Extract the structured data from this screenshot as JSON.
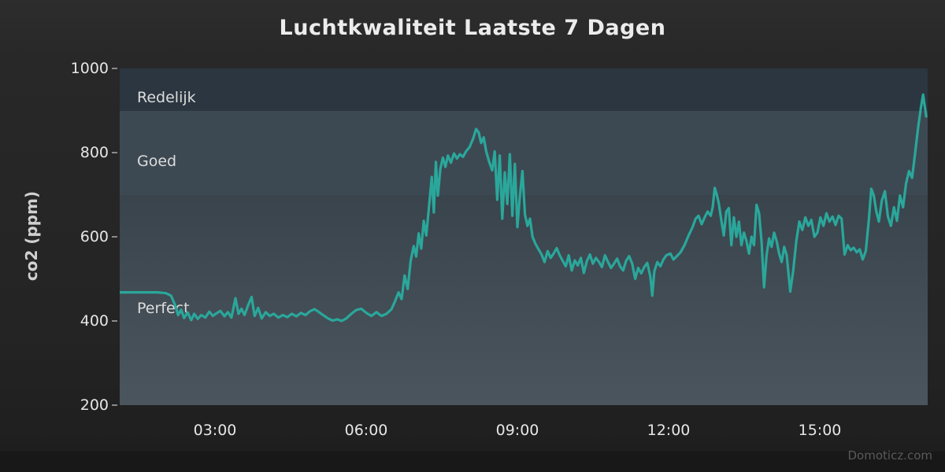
{
  "watermark": "Domoticz.com",
  "chart_data": {
    "type": "line",
    "title": "Luchtkwaliteit Laatste 7 Dagen",
    "xlabel": "",
    "ylabel": "co2 (ppm)",
    "x_unit": "time_of_day_hours",
    "xlim": [
      1.1,
      17.15
    ],
    "ylim": [
      200,
      1000
    ],
    "xtick_values": [
      3,
      6,
      9,
      12,
      15
    ],
    "xtick_labels": [
      "03:00",
      "06:00",
      "09:00",
      "12:00",
      "15:00"
    ],
    "ytick_values": [
      1000,
      800,
      600,
      400,
      200
    ],
    "ytick_labels": [
      "1000",
      "800",
      "600",
      "400",
      "200"
    ],
    "grid": false,
    "legend": false,
    "line_color": "#2aa79b",
    "plot_bg_top": "#2f3a42",
    "plot_bg_bottom": "#4b555d",
    "bands": [
      {
        "label": "Redelijk",
        "from": 900,
        "to": 1000,
        "color": "#2b3640",
        "label_at": 930
      },
      {
        "label": "Goed",
        "from": 700,
        "to": 900,
        "color": "#3d4952",
        "label_at": 780
      },
      {
        "label": "Perfect",
        "from": 200,
        "to": 700,
        "color": "transparent",
        "label_at": 430
      }
    ],
    "series": [
      {
        "name": "co2",
        "points": [
          [
            1.1,
            468
          ],
          [
            1.35,
            468
          ],
          [
            1.6,
            468
          ],
          [
            1.85,
            468
          ],
          [
            2.02,
            466
          ],
          [
            2.12,
            460
          ],
          [
            2.2,
            438
          ],
          [
            2.26,
            414
          ],
          [
            2.32,
            427
          ],
          [
            2.38,
            407
          ],
          [
            2.45,
            420
          ],
          [
            2.52,
            402
          ],
          [
            2.58,
            417
          ],
          [
            2.65,
            405
          ],
          [
            2.72,
            414
          ],
          [
            2.8,
            408
          ],
          [
            2.88,
            422
          ],
          [
            2.95,
            412
          ],
          [
            3.02,
            418
          ],
          [
            3.1,
            424
          ],
          [
            3.18,
            411
          ],
          [
            3.25,
            421
          ],
          [
            3.32,
            408
          ],
          [
            3.4,
            454
          ],
          [
            3.46,
            417
          ],
          [
            3.52,
            429
          ],
          [
            3.58,
            414
          ],
          [
            3.65,
            437
          ],
          [
            3.72,
            457
          ],
          [
            3.78,
            412
          ],
          [
            3.85,
            431
          ],
          [
            3.92,
            406
          ],
          [
            4.0,
            421
          ],
          [
            4.08,
            412
          ],
          [
            4.16,
            417
          ],
          [
            4.25,
            408
          ],
          [
            4.34,
            414
          ],
          [
            4.43,
            409
          ],
          [
            4.52,
            417
          ],
          [
            4.61,
            411
          ],
          [
            4.7,
            419
          ],
          [
            4.79,
            414
          ],
          [
            4.88,
            423
          ],
          [
            4.97,
            428
          ],
          [
            5.06,
            421
          ],
          [
            5.15,
            413
          ],
          [
            5.24,
            406
          ],
          [
            5.33,
            401
          ],
          [
            5.42,
            404
          ],
          [
            5.51,
            400
          ],
          [
            5.6,
            406
          ],
          [
            5.7,
            417
          ],
          [
            5.8,
            426
          ],
          [
            5.9,
            429
          ],
          [
            6.0,
            419
          ],
          [
            6.1,
            412
          ],
          [
            6.2,
            421
          ],
          [
            6.3,
            412
          ],
          [
            6.4,
            417
          ],
          [
            6.5,
            428
          ],
          [
            6.58,
            450
          ],
          [
            6.64,
            468
          ],
          [
            6.7,
            452
          ],
          [
            6.76,
            508
          ],
          [
            6.82,
            476
          ],
          [
            6.88,
            543
          ],
          [
            6.94,
            578
          ],
          [
            6.99,
            553
          ],
          [
            7.04,
            608
          ],
          [
            7.09,
            572
          ],
          [
            7.14,
            638
          ],
          [
            7.19,
            603
          ],
          [
            7.25,
            678
          ],
          [
            7.3,
            742
          ],
          [
            7.34,
            658
          ],
          [
            7.38,
            778
          ],
          [
            7.42,
            698
          ],
          [
            7.47,
            762
          ],
          [
            7.52,
            788
          ],
          [
            7.57,
            766
          ],
          [
            7.62,
            793
          ],
          [
            7.68,
            776
          ],
          [
            7.74,
            798
          ],
          [
            7.8,
            786
          ],
          [
            7.86,
            796
          ],
          [
            7.92,
            790
          ],
          [
            7.98,
            803
          ],
          [
            8.05,
            813
          ],
          [
            8.12,
            833
          ],
          [
            8.18,
            856
          ],
          [
            8.23,
            848
          ],
          [
            8.28,
            823
          ],
          [
            8.33,
            836
          ],
          [
            8.38,
            803
          ],
          [
            8.44,
            778
          ],
          [
            8.5,
            758
          ],
          [
            8.55,
            803
          ],
          [
            8.6,
            688
          ],
          [
            8.65,
            793
          ],
          [
            8.7,
            643
          ],
          [
            8.75,
            753
          ],
          [
            8.8,
            678
          ],
          [
            8.85,
            796
          ],
          [
            8.9,
            650
          ],
          [
            8.95,
            773
          ],
          [
            9.0,
            623
          ],
          [
            9.05,
            698
          ],
          [
            9.1,
            756
          ],
          [
            9.15,
            653
          ],
          [
            9.2,
            626
          ],
          [
            9.25,
            643
          ],
          [
            9.3,
            600
          ],
          [
            9.36,
            583
          ],
          [
            9.42,
            570
          ],
          [
            9.48,
            558
          ],
          [
            9.54,
            540
          ],
          [
            9.6,
            566
          ],
          [
            9.66,
            550
          ],
          [
            9.72,
            560
          ],
          [
            9.78,
            573
          ],
          [
            9.84,
            556
          ],
          [
            9.9,
            543
          ],
          [
            9.96,
            530
          ],
          [
            10.02,
            556
          ],
          [
            10.08,
            520
          ],
          [
            10.14,
            544
          ],
          [
            10.2,
            532
          ],
          [
            10.26,
            550
          ],
          [
            10.32,
            514
          ],
          [
            10.38,
            542
          ],
          [
            10.44,
            558
          ],
          [
            10.5,
            536
          ],
          [
            10.56,
            550
          ],
          [
            10.62,
            540
          ],
          [
            10.68,
            528
          ],
          [
            10.74,
            556
          ],
          [
            10.8,
            540
          ],
          [
            10.86,
            526
          ],
          [
            10.92,
            536
          ],
          [
            10.98,
            548
          ],
          [
            11.04,
            530
          ],
          [
            11.1,
            520
          ],
          [
            11.16,
            543
          ],
          [
            11.22,
            554
          ],
          [
            11.28,
            536
          ],
          [
            11.34,
            500
          ],
          [
            11.4,
            526
          ],
          [
            11.46,
            513
          ],
          [
            11.52,
            528
          ],
          [
            11.58,
            538
          ],
          [
            11.64,
            506
          ],
          [
            11.68,
            460
          ],
          [
            11.72,
            518
          ],
          [
            11.78,
            540
          ],
          [
            11.84,
            530
          ],
          [
            11.9,
            546
          ],
          [
            11.96,
            556
          ],
          [
            12.04,
            560
          ],
          [
            12.1,
            546
          ],
          [
            12.16,
            553
          ],
          [
            12.24,
            563
          ],
          [
            12.32,
            580
          ],
          [
            12.4,
            603
          ],
          [
            12.48,
            623
          ],
          [
            12.54,
            643
          ],
          [
            12.6,
            650
          ],
          [
            12.66,
            630
          ],
          [
            12.72,
            646
          ],
          [
            12.78,
            660
          ],
          [
            12.84,
            650
          ],
          [
            12.88,
            670
          ],
          [
            12.92,
            716
          ],
          [
            12.96,
            700
          ],
          [
            13.0,
            680
          ],
          [
            13.05,
            640
          ],
          [
            13.1,
            603
          ],
          [
            13.15,
            660
          ],
          [
            13.2,
            668
          ],
          [
            13.25,
            580
          ],
          [
            13.3,
            646
          ],
          [
            13.35,
            600
          ],
          [
            13.4,
            636
          ],
          [
            13.45,
            580
          ],
          [
            13.5,
            610
          ],
          [
            13.55,
            590
          ],
          [
            13.6,
            560
          ],
          [
            13.65,
            600
          ],
          [
            13.7,
            580
          ],
          [
            13.75,
            676
          ],
          [
            13.8,
            656
          ],
          [
            13.85,
            590
          ],
          [
            13.9,
            480
          ],
          [
            13.95,
            556
          ],
          [
            14.0,
            596
          ],
          [
            14.05,
            576
          ],
          [
            14.1,
            610
          ],
          [
            14.15,
            590
          ],
          [
            14.2,
            560
          ],
          [
            14.25,
            540
          ],
          [
            14.3,
            576
          ],
          [
            14.35,
            556
          ],
          [
            14.42,
            470
          ],
          [
            14.48,
            520
          ],
          [
            14.54,
            590
          ],
          [
            14.6,
            636
          ],
          [
            14.66,
            616
          ],
          [
            14.72,
            646
          ],
          [
            14.78,
            626
          ],
          [
            14.84,
            640
          ],
          [
            14.9,
            600
          ],
          [
            14.96,
            610
          ],
          [
            15.02,
            646
          ],
          [
            15.08,
            626
          ],
          [
            15.14,
            656
          ],
          [
            15.2,
            636
          ],
          [
            15.26,
            648
          ],
          [
            15.32,
            628
          ],
          [
            15.38,
            650
          ],
          [
            15.44,
            643
          ],
          [
            15.5,
            558
          ],
          [
            15.56,
            580
          ],
          [
            15.62,
            568
          ],
          [
            15.68,
            574
          ],
          [
            15.74,
            563
          ],
          [
            15.8,
            570
          ],
          [
            15.86,
            546
          ],
          [
            15.92,
            566
          ],
          [
            15.98,
            638
          ],
          [
            16.03,
            714
          ],
          [
            16.08,
            698
          ],
          [
            16.13,
            660
          ],
          [
            16.18,
            636
          ],
          [
            16.24,
            686
          ],
          [
            16.3,
            708
          ],
          [
            16.36,
            648
          ],
          [
            16.42,
            626
          ],
          [
            16.48,
            670
          ],
          [
            16.54,
            638
          ],
          [
            16.6,
            698
          ],
          [
            16.66,
            670
          ],
          [
            16.72,
            726
          ],
          [
            16.78,
            756
          ],
          [
            16.84,
            740
          ],
          [
            16.9,
            798
          ],
          [
            16.96,
            860
          ],
          [
            17.02,
            910
          ],
          [
            17.06,
            938
          ],
          [
            17.12,
            886
          ]
        ]
      }
    ]
  }
}
